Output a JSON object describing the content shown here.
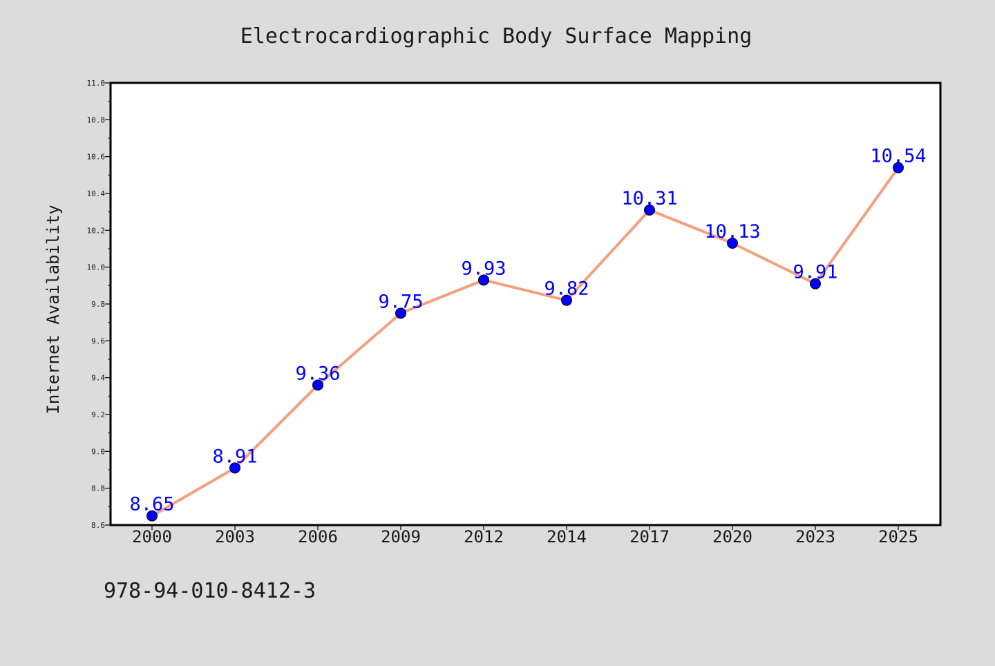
{
  "chart_data": {
    "type": "line",
    "title": "Electrocardiographic Body Surface Mapping",
    "xlabel": "",
    "ylabel": "Internet Availability",
    "categories": [
      "2000",
      "2003",
      "2006",
      "2009",
      "2012",
      "2014",
      "2017",
      "2020",
      "2023",
      "2025"
    ],
    "series": [
      {
        "values": [
          8.65,
          8.91,
          9.36,
          9.75,
          9.93,
          9.82,
          10.31,
          10.13,
          9.91,
          10.54
        ]
      }
    ],
    "data_labels": [
      "8.65",
      "8.91",
      "9.36",
      "9.75",
      "9.93",
      "9.82",
      "10.31",
      "10.13",
      "9.91",
      "10.54"
    ],
    "y_ticks": [
      8.6,
      8.8,
      9.0,
      9.2,
      9.4,
      9.6,
      9.8,
      10.0,
      10.2,
      10.4,
      10.6,
      10.8,
      11.0
    ],
    "y_tick_labels": [
      "8.6",
      "8.8",
      "9.0",
      "9.2",
      "9.4",
      "9.6",
      "9.8",
      "10.0",
      "10.2",
      "10.4",
      "10.6",
      "10.8",
      "11.0"
    ],
    "ylim": [
      8.6,
      11.0
    ],
    "grid": false,
    "legend": "none",
    "colors": {
      "background": "#dcdcdc",
      "plot_background": "#ffffff",
      "line": "#f4a07f",
      "marker": "#0000ff",
      "data_label": "#0000ff",
      "text": "#1a1a1a"
    }
  },
  "footer": {
    "isbn": "978-94-010-8412-3"
  }
}
